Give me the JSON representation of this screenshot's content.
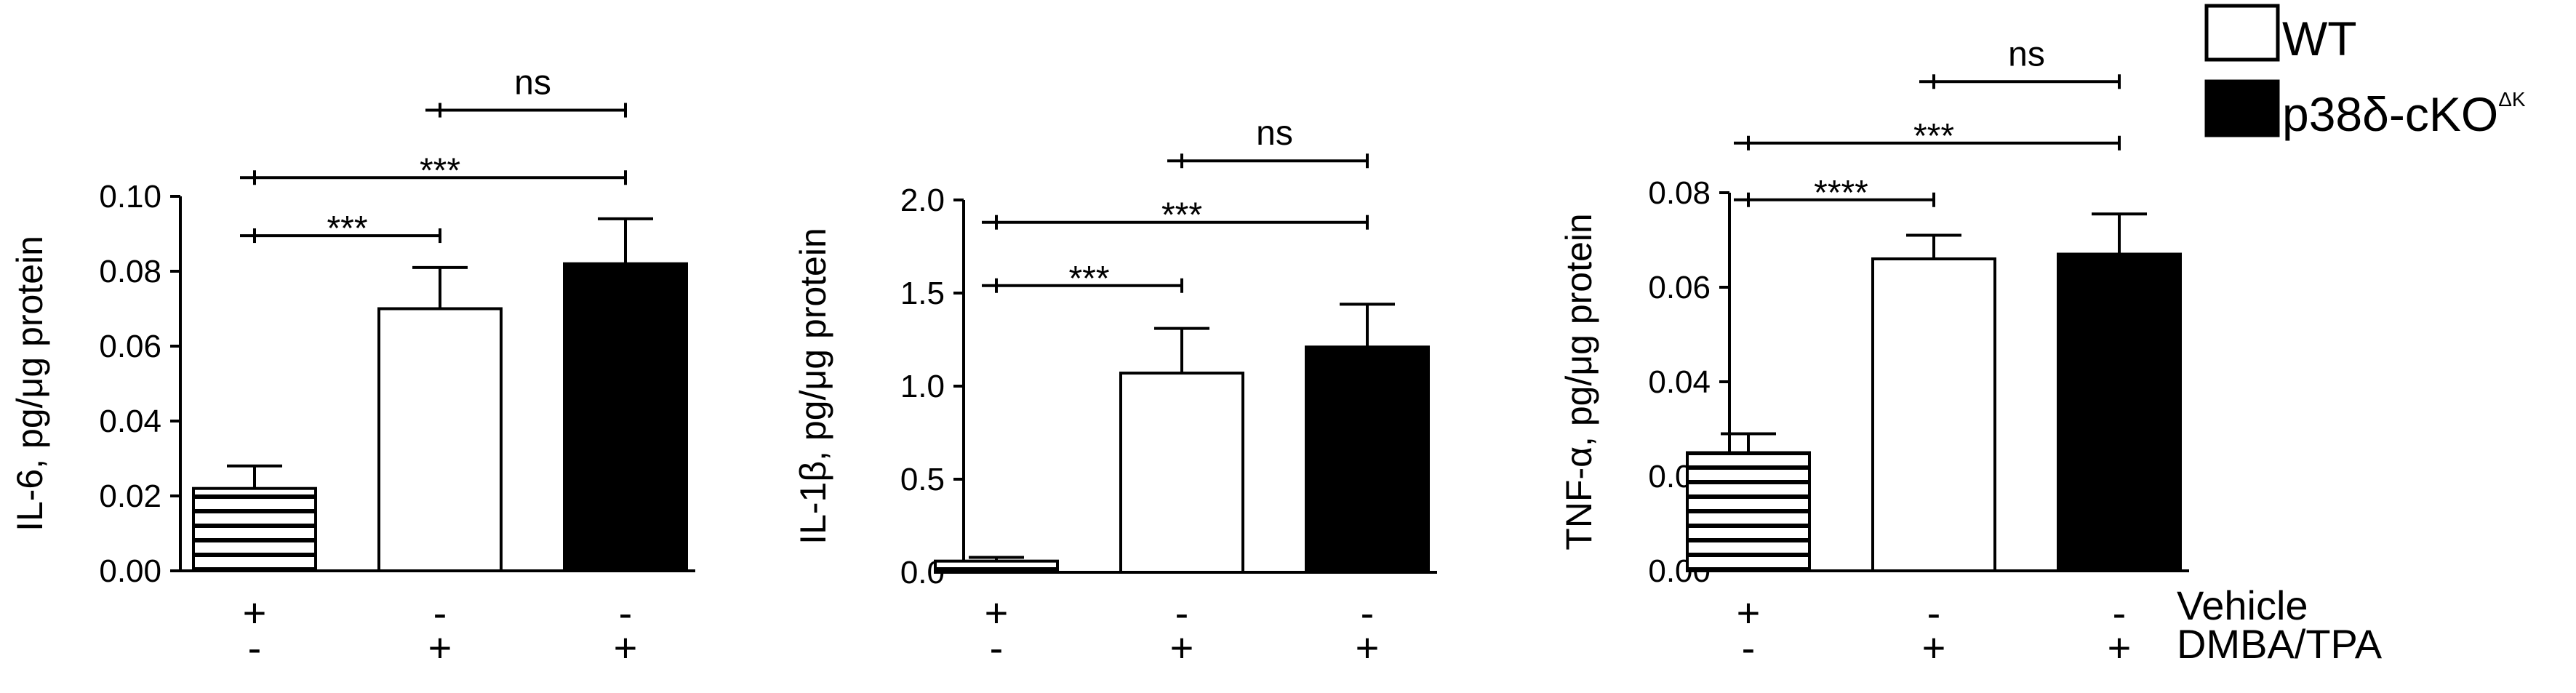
{
  "colors": {
    "wt": "#ffffff",
    "cko": "#000000",
    "vehicle": "#ffffff",
    "stroke": "#000000"
  },
  "treatments": {
    "row_labels": [
      "Vehicle",
      "DMBA/TPA"
    ],
    "vehicle": [
      "+",
      "-",
      "-"
    ],
    "dmba_tpa": [
      "-",
      "+",
      "+"
    ]
  },
  "legend": {
    "items": [
      {
        "name": "WT",
        "fill": "white"
      },
      {
        "name": "p38δ-cKO",
        "sup": "ΔK",
        "fill": "black"
      }
    ]
  },
  "chart_data": [
    {
      "type": "bar",
      "ylabel": "IL-6, pg/μg protein",
      "ylim": [
        0,
        0.1
      ],
      "yticks": [
        "0.00",
        "0.02",
        "0.04",
        "0.06",
        "0.08",
        "0.10"
      ],
      "categories": [
        "Vehicle",
        "DMBA/TPA WT",
        "DMBA/TPA p38δ-cKO"
      ],
      "values": [
        0.022,
        0.07,
        0.082
      ],
      "errors": [
        0.006,
        0.011,
        0.012
      ],
      "fills": [
        "hatch",
        "white",
        "black"
      ],
      "significance": [
        {
          "from": 0,
          "to": 1,
          "label": "***",
          "y": 0.0895
        },
        {
          "from": 0,
          "to": 2,
          "label": "***",
          "y": 0.105
        },
        {
          "from": 1,
          "to": 2,
          "label": "ns",
          "y": 0.123
        }
      ]
    },
    {
      "type": "bar",
      "ylabel": "IL-1β, pg/μg protein",
      "ylim": [
        0,
        2.0
      ],
      "yticks": [
        "0.0",
        "0.5",
        "1.0",
        "1.5",
        "2.0"
      ],
      "categories": [
        "Vehicle",
        "DMBA/TPA WT",
        "DMBA/TPA p38δ-cKO"
      ],
      "values": [
        0.06,
        1.07,
        1.21
      ],
      "errors": [
        0.02,
        0.24,
        0.23
      ],
      "fills": [
        "hatch",
        "white",
        "black"
      ],
      "significance": [
        {
          "from": 0,
          "to": 1,
          "label": "***",
          "y": 1.54
        },
        {
          "from": 0,
          "to": 2,
          "label": "***",
          "y": 1.88
        },
        {
          "from": 1,
          "to": 2,
          "label": "ns",
          "y": 2.21
        }
      ]
    },
    {
      "type": "bar",
      "ylabel": "TNF-α, pg/μg protein",
      "ylim": [
        0,
        0.08
      ],
      "yticks": [
        "0.00",
        "0.02",
        "0.04",
        "0.06",
        "0.08"
      ],
      "categories": [
        "Vehicle",
        "DMBA/TPA WT",
        "DMBA/TPA p38δ-cKO"
      ],
      "values": [
        0.025,
        0.066,
        0.067
      ],
      "errors": [
        0.004,
        0.005,
        0.0085
      ],
      "fills": [
        "hatch",
        "white",
        "black"
      ],
      "significance": [
        {
          "from": 0,
          "to": 1,
          "label": "****",
          "y": 0.0785
        },
        {
          "from": 0,
          "to": 2,
          "label": "***",
          "y": 0.0905
        },
        {
          "from": 1,
          "to": 2,
          "label": "ns",
          "y": 0.1035
        }
      ]
    }
  ]
}
